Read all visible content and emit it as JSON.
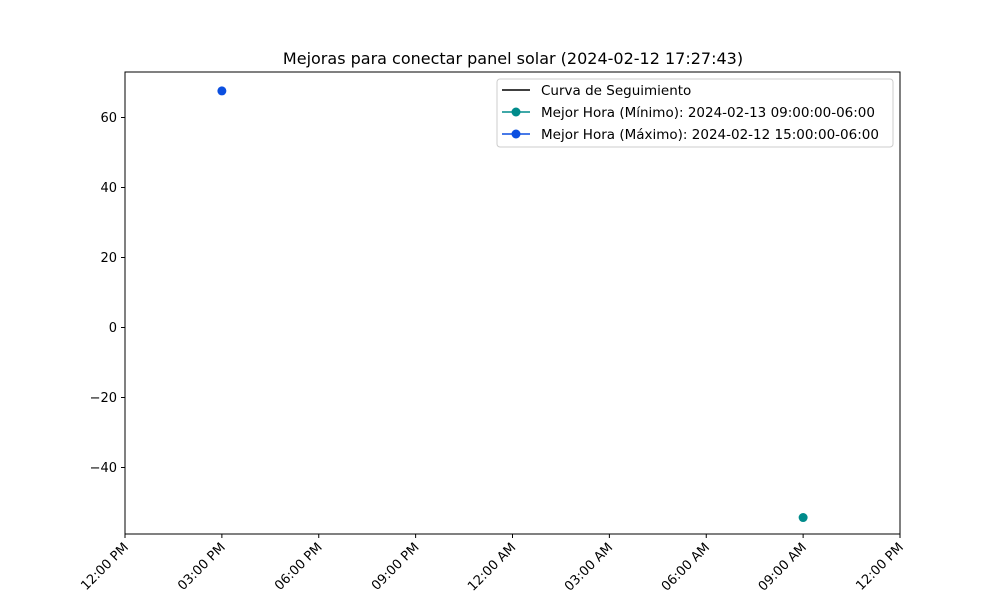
{
  "chart_data": {
    "type": "line",
    "title": "Mejoras para conectar panel solar (2024-02-12 17:27:43)",
    "xlabel": "",
    "ylabel": "",
    "x_axis": {
      "scale": "time",
      "range": [
        "2024-02-12 12:00",
        "2024-02-13 12:00"
      ],
      "ticks": [
        {
          "value": "2024-02-12 12:00",
          "label": "12:00 PM"
        },
        {
          "value": "2024-02-12 15:00",
          "label": "03:00 PM"
        },
        {
          "value": "2024-02-12 18:00",
          "label": "06:00 PM"
        },
        {
          "value": "2024-02-12 21:00",
          "label": "09:00 PM"
        },
        {
          "value": "2024-02-13 00:00",
          "label": "12:00 AM"
        },
        {
          "value": "2024-02-13 03:00",
          "label": "03:00 AM"
        },
        {
          "value": "2024-02-13 06:00",
          "label": "06:00 AM"
        },
        {
          "value": "2024-02-13 09:00",
          "label": "09:00 AM"
        },
        {
          "value": "2024-02-13 12:00",
          "label": "12:00 PM"
        }
      ]
    },
    "y_axis": {
      "range": [
        -59,
        73
      ],
      "ticks": [
        {
          "value": 60,
          "label": "60"
        },
        {
          "value": 40,
          "label": "40"
        },
        {
          "value": 20,
          "label": "20"
        },
        {
          "value": 0,
          "label": "0"
        },
        {
          "value": -20,
          "label": "−20"
        },
        {
          "value": -40,
          "label": "−40"
        }
      ]
    },
    "grid": false,
    "legend_position": "top-right",
    "series": [
      {
        "name": "Curva de Seguimiento",
        "color": "#000000",
        "marker": "none",
        "points": []
      },
      {
        "name": "Mejor Hora (Mínimo): 2024-02-13 09:00:00-06:00",
        "color": "#008b8b",
        "marker": "circle",
        "points": [
          {
            "x": "2024-02-13 09:00",
            "y": -54.3
          }
        ]
      },
      {
        "name": "Mejor Hora (Máximo): 2024-02-12 15:00:00-06:00",
        "color": "#0b4fe0",
        "marker": "circle",
        "points": [
          {
            "x": "2024-02-12 15:00",
            "y": 67.6
          }
        ]
      }
    ]
  }
}
